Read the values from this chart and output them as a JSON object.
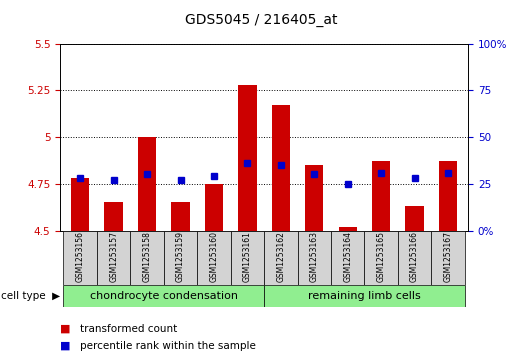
{
  "title": "GDS5045 / 216405_at",
  "samples": [
    "GSM1253156",
    "GSM1253157",
    "GSM1253158",
    "GSM1253159",
    "GSM1253160",
    "GSM1253161",
    "GSM1253162",
    "GSM1253163",
    "GSM1253164",
    "GSM1253165",
    "GSM1253166",
    "GSM1253167"
  ],
  "transformed_counts": [
    4.78,
    4.65,
    5.0,
    4.65,
    4.75,
    5.28,
    5.17,
    4.85,
    4.52,
    4.87,
    4.63,
    4.87
  ],
  "percentile_ranks": [
    28,
    27,
    30,
    27,
    29,
    36,
    35,
    30,
    25,
    31,
    28,
    31
  ],
  "group_labels": [
    "chondrocyte condensation",
    "remaining limb cells"
  ],
  "group_split": 6,
  "bar_color": "#CC0000",
  "marker_color": "#0000CC",
  "ylim_left": [
    4.5,
    5.5
  ],
  "ylim_right": [
    0,
    100
  ],
  "yticks_left": [
    4.5,
    4.75,
    5.0,
    5.25,
    5.5
  ],
  "yticks_right": [
    0,
    25,
    50,
    75,
    100
  ],
  "ytick_labels_left": [
    "4.5",
    "4.75",
    "5",
    "5.25",
    "5.5"
  ],
  "ytick_labels_right": [
    "0%",
    "25",
    "50",
    "75",
    "100%"
  ],
  "sample_box_color": "#d3d3d3",
  "group_color": "#90EE90",
  "plot_bg_color": "#ffffff",
  "grid_color": "#000000",
  "bar_width": 0.55
}
